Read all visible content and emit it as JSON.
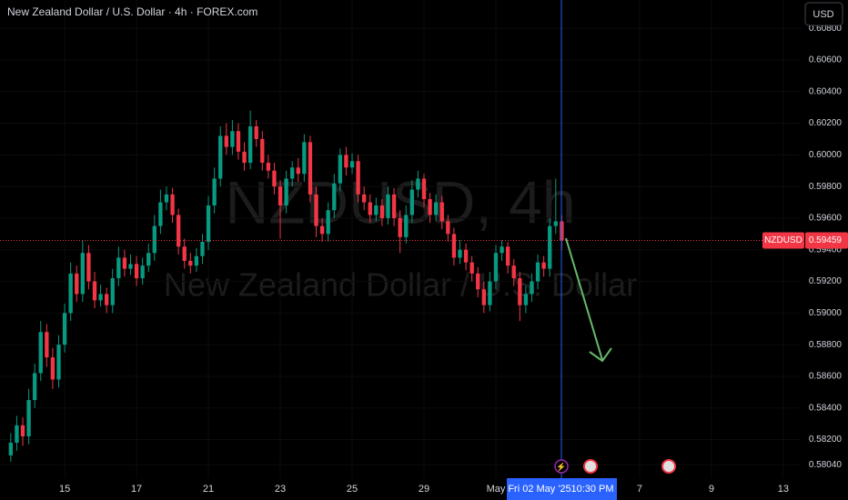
{
  "chart_data": {
    "type": "candlestick",
    "title": "New Zealand Dollar / U.S. Dollar · 4h · FOREX.com",
    "currency": "USD",
    "watermark_symbol": "NZDUSD, 4h",
    "watermark_name": "New Zealand Dollar / U.S. Dollar",
    "price_tag_symbol": "NZDUSD",
    "last_price": 0.59459,
    "crosshair_date": "Fri 02 May '25",
    "crosshair_time": "10:30 PM",
    "up_color": "#089981",
    "down_color": "#f23645",
    "open": [
      0.581,
      0.5818,
      0.5829,
      0.5822,
      0.5845,
      0.5862,
      0.5888,
      0.5872,
      0.5858,
      0.588,
      0.59,
      0.5925,
      0.5912,
      0.5938,
      0.592,
      0.5908,
      0.5912,
      0.5905,
      0.5922,
      0.5935,
      0.5928,
      0.5931,
      0.5922,
      0.593,
      0.5938,
      0.5955,
      0.597,
      0.5975,
      0.5962,
      0.5942,
      0.5933,
      0.593,
      0.5936,
      0.5945,
      0.5968,
      0.5985,
      0.6012,
      0.6005,
      0.6015,
      0.6002,
      0.5995,
      0.6018,
      0.601,
      0.5995,
      0.599,
      0.598,
      0.5968,
      0.5985,
      0.5992,
      0.5988,
      0.6008,
      0.5975,
      0.5955,
      0.595,
      0.5965,
      0.5982,
      0.6,
      0.5992,
      0.5996,
      0.5975,
      0.597,
      0.5962,
      0.5968,
      0.596,
      0.5975,
      0.596,
      0.5948,
      0.5962,
      0.5978,
      0.5985,
      0.5972,
      0.5962,
      0.597,
      0.5958,
      0.595,
      0.5935,
      0.594,
      0.5932,
      0.5925,
      0.5915,
      0.5905,
      0.592,
      0.5938,
      0.5942,
      0.593,
      0.5922,
      0.5905,
      0.5912,
      0.592,
      0.5932,
      0.5928,
      0.5955,
      0.5958
    ],
    "high": [
      0.5824,
      0.5835,
      0.5834,
      0.5852,
      0.5868,
      0.5895,
      0.5893,
      0.5878,
      0.5886,
      0.5906,
      0.5932,
      0.593,
      0.5946,
      0.5943,
      0.5926,
      0.5918,
      0.5916,
      0.5928,
      0.5942,
      0.594,
      0.5937,
      0.5936,
      0.5935,
      0.5944,
      0.5962,
      0.5978,
      0.598,
      0.5979,
      0.5966,
      0.5947,
      0.5938,
      0.5941,
      0.595,
      0.5974,
      0.5992,
      0.6018,
      0.602,
      0.6022,
      0.602,
      0.6008,
      0.6028,
      0.6022,
      0.6015,
      0.6,
      0.5995,
      0.5984,
      0.599,
      0.5996,
      0.5998,
      0.6013,
      0.6012,
      0.598,
      0.596,
      0.597,
      0.5988,
      0.6004,
      0.6005,
      0.6001,
      0.6,
      0.598,
      0.5975,
      0.5973,
      0.5972,
      0.598,
      0.5979,
      0.5965,
      0.5968,
      0.5984,
      0.599,
      0.5988,
      0.5976,
      0.5975,
      0.5974,
      0.5962,
      0.5954,
      0.5946,
      0.5944,
      0.5936,
      0.5929,
      0.592,
      0.5926,
      0.5943,
      0.5946,
      0.5945,
      0.5934,
      0.5926,
      0.5917,
      0.5925,
      0.5937,
      0.5936,
      0.596,
      0.5985,
      0.5962
    ],
    "low": [
      0.5806,
      0.5813,
      0.5816,
      0.5817,
      0.584,
      0.5857,
      0.5866,
      0.5852,
      0.5853,
      0.5875,
      0.5895,
      0.5907,
      0.5907,
      0.5915,
      0.5903,
      0.5904,
      0.59,
      0.59,
      0.5917,
      0.5923,
      0.5924,
      0.5917,
      0.5918,
      0.5926,
      0.5933,
      0.595,
      0.5965,
      0.5957,
      0.5937,
      0.5928,
      0.5925,
      0.5926,
      0.5931,
      0.594,
      0.5963,
      0.598,
      0.6,
      0.6,
      0.5997,
      0.599,
      0.5991,
      0.6005,
      0.599,
      0.5985,
      0.5975,
      0.5947,
      0.5963,
      0.598,
      0.5983,
      0.5983,
      0.597,
      0.5948,
      0.5945,
      0.5945,
      0.596,
      0.5977,
      0.5987,
      0.5988,
      0.597,
      0.5965,
      0.5957,
      0.5958,
      0.5955,
      0.5956,
      0.5955,
      0.5938,
      0.5944,
      0.5957,
      0.5973,
      0.5967,
      0.5957,
      0.5958,
      0.5953,
      0.5945,
      0.593,
      0.5931,
      0.5927,
      0.592,
      0.591,
      0.59,
      0.5901,
      0.5915,
      0.5933,
      0.5925,
      0.5917,
      0.5895,
      0.59,
      0.5907,
      0.5915,
      0.5923,
      0.5923,
      0.595,
      0.594
    ],
    "close": [
      0.5818,
      0.5829,
      0.5822,
      0.5845,
      0.5862,
      0.5888,
      0.5872,
      0.5858,
      0.588,
      0.59,
      0.5925,
      0.5912,
      0.5938,
      0.592,
      0.5908,
      0.5912,
      0.5905,
      0.5922,
      0.5935,
      0.5928,
      0.5931,
      0.5922,
      0.593,
      0.5938,
      0.5955,
      0.597,
      0.5975,
      0.5962,
      0.5942,
      0.5933,
      0.593,
      0.5936,
      0.5945,
      0.5968,
      0.5985,
      0.6012,
      0.6005,
      0.6015,
      0.6002,
      0.5995,
      0.6018,
      0.601,
      0.5995,
      0.599,
      0.598,
      0.5968,
      0.5985,
      0.5992,
      0.5988,
      0.6008,
      0.5975,
      0.5955,
      0.595,
      0.5965,
      0.5982,
      0.6,
      0.5992,
      0.5996,
      0.5975,
      0.597,
      0.5962,
      0.5968,
      0.596,
      0.5975,
      0.596,
      0.5948,
      0.5962,
      0.5978,
      0.5985,
      0.5972,
      0.5962,
      0.597,
      0.5958,
      0.595,
      0.5935,
      0.594,
      0.5932,
      0.5925,
      0.5915,
      0.5905,
      0.592,
      0.5938,
      0.5942,
      0.593,
      0.5922,
      0.5905,
      0.5912,
      0.592,
      0.5932,
      0.5928,
      0.5955,
      0.5958,
      0.5946
    ],
    "ylim": [
      0.57956,
      0.60979
    ],
    "yticks": [
      {
        "value": 0.608,
        "label": "0.60800"
      },
      {
        "value": 0.606,
        "label": "0.60600"
      },
      {
        "value": 0.604,
        "label": "0.60400"
      },
      {
        "value": 0.602,
        "label": "0.60200"
      },
      {
        "value": 0.6,
        "label": "0.60000"
      },
      {
        "value": 0.598,
        "label": "0.59800"
      },
      {
        "value": 0.596,
        "label": "0.59600"
      },
      {
        "value": 0.594,
        "label": "0.59400"
      },
      {
        "value": 0.592,
        "label": "0.59200"
      },
      {
        "value": 0.59,
        "label": "0.59000"
      },
      {
        "value": 0.588,
        "label": "0.58800"
      },
      {
        "value": 0.586,
        "label": "0.58600"
      },
      {
        "value": 0.584,
        "label": "0.58400"
      },
      {
        "value": 0.582,
        "label": "0.58200"
      },
      {
        "value": 0.5804,
        "label": "0.58040"
      }
    ],
    "xlim": [
      -1.8,
      131.9
    ],
    "xticks": [
      {
        "value": 9,
        "label": "15"
      },
      {
        "value": 21,
        "label": "17"
      },
      {
        "value": 33,
        "label": "21"
      },
      {
        "value": 45,
        "label": "23"
      },
      {
        "value": 57,
        "label": "25"
      },
      {
        "value": 69,
        "label": "29"
      },
      {
        "value": 81,
        "label": "May"
      },
      {
        "value": 105,
        "label": "7"
      },
      {
        "value": 117,
        "label": "9"
      },
      {
        "value": 129,
        "label": "13"
      }
    ]
  }
}
